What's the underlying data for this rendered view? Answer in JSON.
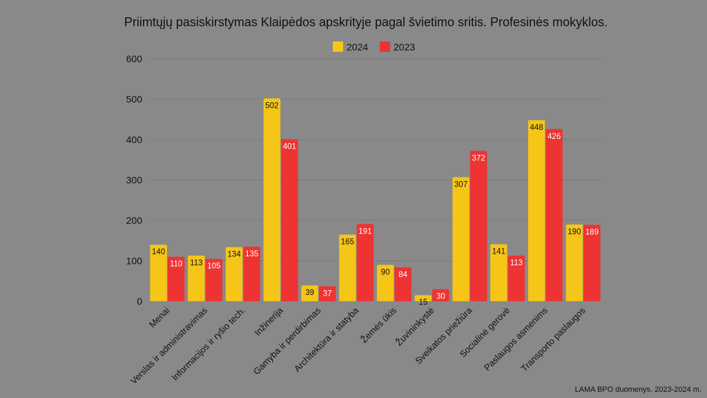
{
  "chart_data": {
    "type": "bar",
    "title": "Priimtųjų pasiskirstymas Klaipėdos apskrityje pagal švietimo sritis. Profesinės mokyklos.",
    "xlabel": "",
    "ylabel": "",
    "ylim": [
      0,
      600
    ],
    "yticks": [
      0,
      100,
      200,
      300,
      400,
      500,
      600
    ],
    "grid": true,
    "legend_position": "top-center",
    "categories": [
      "Menai",
      "Verslas ir administravimas",
      "Informacijos ir ryšio tech.",
      "Inžinerija",
      "Gamyba ir perdirbimas",
      "Architektūra ir statyba",
      "Žemės ūkis",
      "Žuvininkystė",
      "Sveikatos priežiūra",
      "Socialinė gerovė",
      "Paslaugos asmenims",
      "Transporto paslaugos"
    ],
    "series": [
      {
        "name": "2024",
        "color": "#f5c518",
        "label_color": "#111111",
        "values": [
          140,
          113,
          134,
          502,
          39,
          165,
          90,
          15,
          307,
          141,
          448,
          190
        ]
      },
      {
        "name": "2023",
        "color": "#ee3333",
        "label_color": "#ffffff",
        "values": [
          110,
          105,
          135,
          401,
          37,
          191,
          84,
          30,
          372,
          113,
          426,
          189
        ]
      }
    ],
    "source": "LAMA BPO duomenys. 2023-2024 m."
  }
}
